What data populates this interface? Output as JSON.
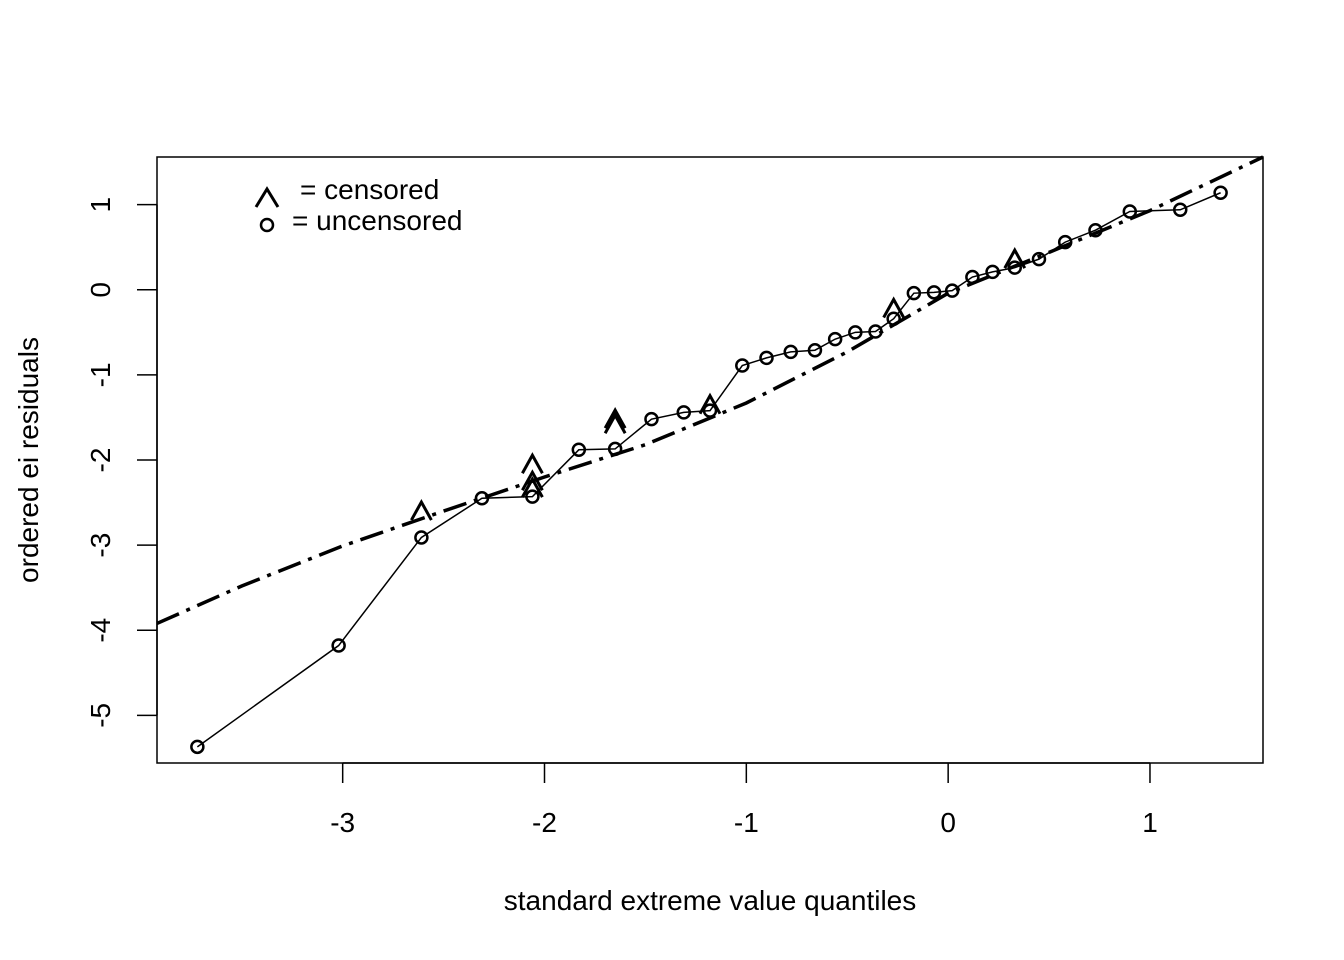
{
  "chart_data": {
    "type": "scatter",
    "xlabel": "standard extreme value quantiles",
    "ylabel": "ordered ei residuals",
    "xlim": [
      -3.92,
      1.56
    ],
    "ylim": [
      -5.56,
      1.56
    ],
    "xticks": [
      -3,
      -2,
      -1,
      0,
      1
    ],
    "yticks": [
      -5,
      -4,
      -3,
      -2,
      -1,
      0,
      1
    ],
    "xtick_labels": [
      "-3",
      "-2",
      "-1",
      "0",
      "1"
    ],
    "ytick_labels": [
      "-5",
      "-4",
      "-3",
      "-2",
      "-1",
      "0",
      "1"
    ],
    "grid": false,
    "legend_position": "top-left",
    "legend": [
      {
        "symbol": "^",
        "label": "= censored"
      },
      {
        "symbol": "o",
        "label": "= uncensored"
      }
    ],
    "series": [
      {
        "name": "uncensored",
        "marker": "circle",
        "connected": true,
        "x": [
          -3.72,
          -3.02,
          -2.61,
          -2.31,
          -2.06,
          -1.83,
          -1.65,
          -1.47,
          -1.31,
          -1.18,
          -1.02,
          -0.9,
          -0.78,
          -0.66,
          -0.56,
          -0.46,
          -0.36,
          -0.27,
          -0.17,
          -0.07,
          0.02,
          0.12,
          0.22,
          0.33,
          0.45,
          0.58,
          0.73,
          0.9,
          1.15,
          1.35
        ],
        "y": [
          -5.37,
          -4.18,
          -2.91,
          -2.45,
          -2.43,
          -1.88,
          -1.87,
          -1.52,
          -1.44,
          -1.42,
          -0.89,
          -0.8,
          -0.73,
          -0.71,
          -0.58,
          -0.5,
          -0.49,
          -0.34,
          -0.04,
          -0.03,
          -0.01,
          0.15,
          0.21,
          0.26,
          0.36,
          0.56,
          0.7,
          0.92,
          0.94,
          1.14
        ]
      },
      {
        "name": "censored",
        "marker": "caret",
        "x": [
          -2.61,
          -2.06,
          -2.06,
          -2.06,
          -1.65,
          -1.65,
          -1.18,
          -0.27,
          0.33
        ],
        "y": [
          -2.6,
          -2.05,
          -2.25,
          -2.33,
          -1.52,
          -1.58,
          -1.35,
          -0.22,
          0.36
        ]
      },
      {
        "name": "fit",
        "style": "dashdot",
        "x": [
          -3.92,
          -3.5,
          -3.0,
          -2.5,
          -2.0,
          -1.5,
          -1.0,
          -0.5,
          0.0,
          0.5,
          1.0,
          1.56
        ],
        "y": [
          -3.92,
          -3.48,
          -3.01,
          -2.6,
          -2.2,
          -1.82,
          -1.33,
          -0.73,
          -0.04,
          0.44,
          0.93,
          1.56
        ]
      }
    ]
  }
}
